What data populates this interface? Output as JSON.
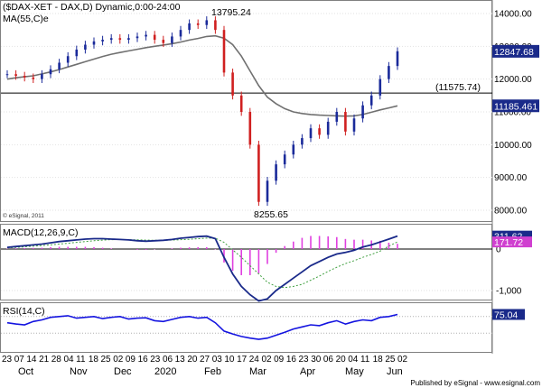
{
  "chart_data": [
    {
      "type": "candlestick",
      "title": "($DAX-XET - DAX,D) Dynamic,0:00-24:00",
      "indicator_label": "MA(55,C)e",
      "copyright": "© eSignal, 2011",
      "y_ticks": [
        8000,
        9000,
        10000,
        11000,
        12000,
        13000,
        14000
      ],
      "y_tick_labels": [
        "8000.00",
        "9000.00",
        "10000.00",
        "11000.00",
        "12000.00",
        "13000.00",
        "14000.00"
      ],
      "annotations": [
        {
          "text": "13795.24",
          "value": 13795.24
        },
        {
          "text": "8255.65",
          "value": 8255.65
        },
        {
          "text": "(11575.74)",
          "value": 11575.74
        }
      ],
      "horizontal_line": 11575.74,
      "badges": [
        {
          "text": "12847.68",
          "value": 12847.68,
          "color": "#1a2a8a"
        },
        {
          "text": "11185.461",
          "value": 11185.461,
          "color": "#1a2a8a"
        }
      ],
      "x_labels": [
        "23",
        "07",
        "14",
        "21",
        "28",
        "04",
        "11",
        "18",
        "25",
        "02",
        "09",
        "16",
        "23",
        "06",
        "13",
        "20",
        "27",
        "03",
        "10",
        "17",
        "24",
        "02",
        "09",
        "16",
        "23",
        "30",
        "06",
        "20",
        "04",
        "11",
        "18",
        "25",
        "02"
      ],
      "month_labels": [
        "Oct",
        "Nov",
        "Dec",
        "2020",
        "Feb",
        "Mar",
        "Apr",
        "May",
        "Jun"
      ],
      "series": [
        {
          "name": "DAX",
          "values": [
            12150,
            12100,
            12050,
            12000,
            12150,
            12300,
            12500,
            12700,
            12900,
            13050,
            13150,
            13200,
            13250,
            13200,
            13250,
            13300,
            13350,
            13200,
            13100,
            13300,
            13500,
            13700,
            13650,
            13795,
            13500,
            12200,
            11500,
            11000,
            10000,
            8255,
            8900,
            9400,
            9700,
            10000,
            10200,
            10500,
            10300,
            10700,
            11000,
            10400,
            10800,
            11200,
            11500,
            12000,
            12400,
            12848
          ],
          "color": "#d02020"
        }
      ],
      "ma_values": [
        12000,
        12040,
        12070,
        12100,
        12160,
        12220,
        12290,
        12370,
        12450,
        12530,
        12610,
        12690,
        12760,
        12810,
        12860,
        12910,
        12960,
        13000,
        13040,
        13080,
        13130,
        13190,
        13240,
        13300,
        13320,
        13250,
        13050,
        12700,
        12250,
        11800,
        11450,
        11250,
        11100,
        11000,
        10950,
        10920,
        10900,
        10890,
        10880,
        10870,
        10880,
        10920,
        10990,
        11060,
        11120,
        11185
      ]
    },
    {
      "type": "line",
      "title": "MACD(12,26,9,C)",
      "y_ticks": [
        0,
        -1000
      ],
      "y_tick_labels": [
        "0",
        "-1,000"
      ],
      "badges": [
        {
          "text": "311.62",
          "value": 311.62,
          "color": "#1a2a8a"
        },
        {
          "text": "171.72",
          "value": 171.72,
          "color": "#d040d0"
        }
      ],
      "series": [
        {
          "name": "MACD",
          "values": [
            40,
            60,
            80,
            100,
            120,
            150,
            180,
            200,
            220,
            240,
            250,
            250,
            240,
            230,
            220,
            200,
            190,
            200,
            210,
            230,
            260,
            280,
            300,
            310,
            250,
            -200,
            -600,
            -900,
            -1100,
            -1250,
            -1200,
            -1000,
            -850,
            -700,
            -550,
            -400,
            -300,
            -200,
            -120,
            -80,
            -30,
            50,
            100,
            170,
            240,
            312
          ],
          "color": "#1a2a8a"
        },
        {
          "name": "Signal",
          "values": [
            30,
            40,
            55,
            70,
            85,
            100,
            120,
            140,
            160,
            180,
            200,
            215,
            225,
            228,
            227,
            222,
            215,
            210,
            210,
            215,
            225,
            235,
            250,
            262,
            262,
            160,
            -20,
            -200,
            -400,
            -600,
            -800,
            -900,
            -930,
            -900,
            -850,
            -750,
            -650,
            -540,
            -440,
            -350,
            -280,
            -200,
            -130,
            -50,
            70,
            172
          ],
          "color": "#40a040"
        }
      ]
    },
    {
      "type": "line",
      "title": "RSI(14,C)",
      "badges": [
        {
          "text": "75.04",
          "value": 75.04,
          "color": "#1a2a8a"
        }
      ],
      "ylim": [
        0,
        100
      ],
      "series": [
        {
          "name": "RSI",
          "values": [
            55,
            52,
            50,
            58,
            62,
            68,
            70,
            72,
            66,
            68,
            70,
            65,
            68,
            70,
            64,
            66,
            67,
            60,
            58,
            63,
            68,
            70,
            66,
            68,
            55,
            35,
            28,
            22,
            18,
            15,
            18,
            25,
            32,
            40,
            45,
            50,
            48,
            55,
            60,
            52,
            58,
            62,
            60,
            68,
            70,
            75
          ],
          "color": "#1414e0"
        }
      ]
    }
  ],
  "footer": "Published by eSignal - www.esignal.com"
}
